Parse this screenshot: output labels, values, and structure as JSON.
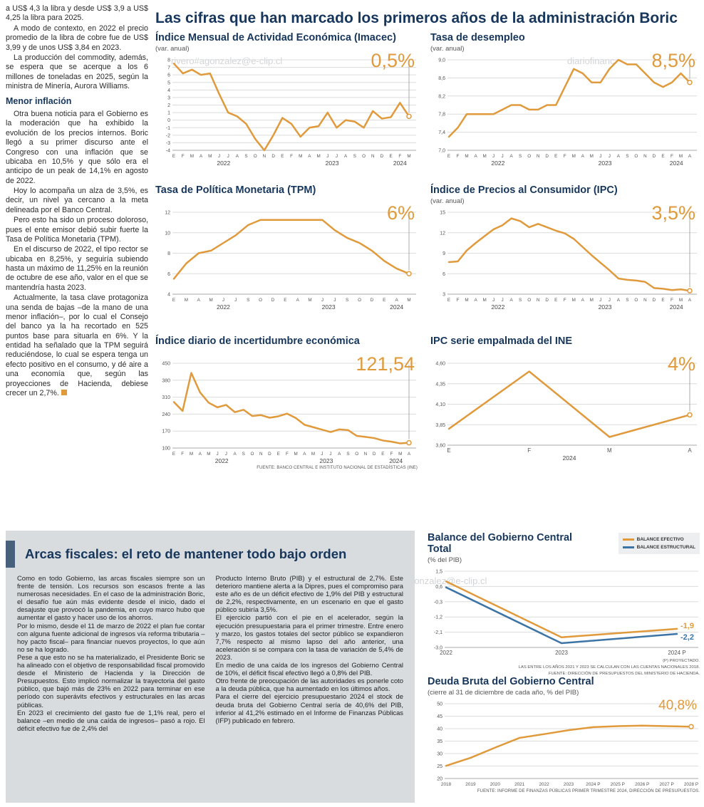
{
  "colors": {
    "accent_orange": "#E09A3C",
    "line_blue": "#3C74A6",
    "navy": "#16365C",
    "box_gray": "#D9DCDF"
  },
  "watermarks": {
    "top_left": "rivero#agonzalez@e-clip.cl",
    "top_right": "diariofinanc",
    "middle": "ero.#gagonzalez@e-clip.cl"
  },
  "left_column": {
    "paragraphs_top": [
      "a US$ 4,3 la libra y desde US$ 3,9 a US$ 4,25 la libra para 2025.",
      "A modo de contexto, en 2022 el precio promedio de la libra de cobre fue de US$ 3,99 y de unos US$ 3,84 en 2023.",
      "La producción del commodity, además, se espera que se acerque a los 6 millones de toneladas en 2025, según la ministra de Minería, Aurora Williams."
    ],
    "heading": "Menor inflación",
    "paragraphs_bottom": [
      "Otra buena noticia para el Gobierno es la moderación que ha exhibido la evolución de los precios internos. Boric llegó a su primer discurso ante el Congreso con una inflación que se ubicaba en 10,5% y que sólo era el anticipo de un peak de 14,1% en agosto de 2022.",
      "Hoy lo acompaña un alza de 3,5%, es decir, un nivel ya cercano a la meta delineada por el Banco Central.",
      "Pero esto ha sido un proceso doloroso, pues el ente emisor debió subir fuerte la Tasa de Política Monetaria (TPM).",
      "En el discurso de 2022, el tipo rector se ubicaba en 8,25%, y seguiría subiendo hasta un máximo de 11,25% en la reunión de octubre de ese año, valor en el que se mantendría hasta 2023.",
      "Actualmente, la tasa clave protagoniza una senda de bajas –de la mano de una menor inflación–, por lo cual el Consejo del banco ya la ha recortado en 525 puntos base para situarla en 6%. Y la entidad ha señalado que la TPM seguirá reduciéndose, lo cual se espera tenga un efecto positivo en el consumo, y dé aire a una economía que, según las proyecciones de Hacienda, debiese crecer un 2,7%."
    ]
  },
  "main_title": "Las cifras que han marcado los primeros años de la administración Boric",
  "chart_data": [
    {
      "type": "line",
      "title": "Índice Mensual de Actividad Económica (Imacec)",
      "subtitle": "(var. anual)",
      "big_value": "0,5%",
      "ylim": [
        -4,
        8
      ],
      "yticks": [
        8,
        7,
        6,
        5,
        4,
        3,
        2,
        1,
        0,
        -1,
        -2,
        -3,
        -4
      ],
      "ytick_labels": [
        "8",
        "7",
        "6",
        "5",
        "4",
        "3",
        "2",
        "1",
        "0",
        "-1",
        "-2",
        "-3",
        "-4"
      ],
      "x_labels": [
        "E",
        "F",
        "M",
        "A",
        "M",
        "J",
        "J",
        "A",
        "S",
        "O",
        "N",
        "D",
        "E",
        "F",
        "M",
        "A",
        "M",
        "J",
        "J",
        "A",
        "S",
        "O",
        "N",
        "D",
        "E",
        "F",
        "M"
      ],
      "years": [
        {
          "label": "2022",
          "i": 5.5
        },
        {
          "label": "2023",
          "i": 17.5
        },
        {
          "label": "2024",
          "i": 25
        }
      ],
      "series": [
        {
          "color": "#E09A3C",
          "values": [
            7.5,
            6.2,
            6.7,
            6.0,
            6.2,
            3.5,
            1.0,
            0.5,
            -0.5,
            -2.5,
            -4.0,
            -2.0,
            0.3,
            -0.5,
            -2.2,
            -1.0,
            -0.8,
            1.0,
            -1.0,
            0.0,
            -0.2,
            -1.0,
            1.2,
            0.2,
            0.4,
            2.3,
            0.5
          ]
        }
      ],
      "end_marker": true,
      "drop_line": true
    },
    {
      "type": "line",
      "title": "Tasa de desempleo",
      "subtitle": "(var. anual)",
      "big_value": "8,5%",
      "ylim": [
        7.0,
        9.0
      ],
      "yticks": [
        9.0,
        8.6,
        8.2,
        7.8,
        7.4,
        7.0
      ],
      "ytick_labels": [
        "9,0",
        "8,6",
        "8,2",
        "7,8",
        "7,4",
        "7,0"
      ],
      "x_labels": [
        "E",
        "F",
        "M",
        "A",
        "M",
        "J",
        "J",
        "A",
        "S",
        "O",
        "N",
        "D",
        "E",
        "F",
        "M",
        "A",
        "M",
        "J",
        "J",
        "A",
        "S",
        "O",
        "N",
        "D",
        "E",
        "F",
        "M",
        "A"
      ],
      "years": [
        {
          "label": "2022",
          "i": 5.5
        },
        {
          "label": "2023",
          "i": 17.5
        },
        {
          "label": "2024",
          "i": 25.5
        }
      ],
      "series": [
        {
          "color": "#E09A3C",
          "values": [
            7.3,
            7.5,
            7.8,
            7.8,
            7.8,
            7.8,
            7.9,
            8.0,
            8.0,
            7.9,
            7.9,
            8.0,
            8.0,
            8.4,
            8.8,
            8.7,
            8.5,
            8.5,
            8.8,
            9.0,
            8.9,
            8.9,
            8.7,
            8.5,
            8.4,
            8.5,
            8.7,
            8.5
          ]
        }
      ],
      "end_marker": true,
      "drop_line": true
    },
    {
      "type": "line",
      "title": "Tasa de Política Monetaria (TPM)",
      "subtitle": "",
      "big_value": "6%",
      "ylim": [
        4,
        12
      ],
      "yticks": [
        12,
        10,
        8,
        6,
        4
      ],
      "ytick_labels": [
        "12",
        "10",
        "8",
        "6",
        "4"
      ],
      "x_labels": [
        "E",
        "M",
        "A",
        "M",
        "J",
        "J",
        "S",
        "O",
        "D",
        "E",
        "A",
        "M",
        "J",
        "J",
        "S",
        "O",
        "D",
        "E",
        "A",
        "M"
      ],
      "years": [
        {
          "label": "2022",
          "i": 4
        },
        {
          "label": "2023",
          "i": 12.5
        },
        {
          "label": "2024",
          "i": 18
        }
      ],
      "series": [
        {
          "color": "#E09A3C",
          "values": [
            5.5,
            7.0,
            8.0,
            8.25,
            9.0,
            9.75,
            10.75,
            11.25,
            11.25,
            11.25,
            11.25,
            11.25,
            11.25,
            10.25,
            9.5,
            9.0,
            8.25,
            7.25,
            6.5,
            6.0
          ]
        }
      ],
      "end_marker": true,
      "drop_line": true
    },
    {
      "type": "line",
      "title": "Índice de Precios al Consumidor (IPC)",
      "subtitle": "(var. anual)",
      "big_value": "3,5%",
      "ylim": [
        3,
        15
      ],
      "yticks": [
        15,
        12,
        9,
        6,
        3
      ],
      "ytick_labels": [
        "15",
        "12",
        "9",
        "6",
        "3"
      ],
      "x_labels": [
        "E",
        "F",
        "M",
        "A",
        "M",
        "J",
        "J",
        "A",
        "S",
        "O",
        "N",
        "D",
        "E",
        "F",
        "M",
        "A",
        "M",
        "J",
        "J",
        "A",
        "S",
        "O",
        "N",
        "D",
        "E",
        "F",
        "M",
        "A"
      ],
      "years": [
        {
          "label": "2022",
          "i": 5.5
        },
        {
          "label": "2023",
          "i": 17.5
        },
        {
          "label": "2024",
          "i": 25.5
        }
      ],
      "series": [
        {
          "color": "#E09A3C",
          "values": [
            7.7,
            7.8,
            9.4,
            10.5,
            11.5,
            12.5,
            13.1,
            14.1,
            13.7,
            12.8,
            13.3,
            12.8,
            12.3,
            11.9,
            11.1,
            9.9,
            8.7,
            7.6,
            6.5,
            5.3,
            5.1,
            5.0,
            4.8,
            3.9,
            3.8,
            3.6,
            3.7,
            3.5
          ]
        }
      ],
      "end_marker": true,
      "drop_line": true
    },
    {
      "type": "line",
      "title": "Índice diario de incertidumbre económica",
      "subtitle": "",
      "big_value": "121,54",
      "ylim": [
        100,
        450
      ],
      "yticks": [
        450,
        380,
        310,
        240,
        170,
        100
      ],
      "ytick_labels": [
        "450",
        "380",
        "310",
        "240",
        "170",
        "100"
      ],
      "x_labels": [
        "E",
        "F",
        "M",
        "A",
        "M",
        "J",
        "J",
        "A",
        "S",
        "O",
        "N",
        "D",
        "E",
        "F",
        "M",
        "A",
        "M",
        "J",
        "J",
        "A",
        "S",
        "O",
        "N",
        "D",
        "E",
        "F",
        "M",
        "A"
      ],
      "years": [
        {
          "label": "2022",
          "i": 5.5
        },
        {
          "label": "2023",
          "i": 17.5
        },
        {
          "label": "2024",
          "i": 25.5
        }
      ],
      "series": [
        {
          "color": "#E09A3C",
          "values": [
            290,
            253,
            410,
            330,
            287,
            268,
            278,
            248,
            258,
            232,
            236,
            225,
            231,
            242,
            224,
            196,
            186,
            176,
            166,
            177,
            174,
            150,
            146,
            141,
            131,
            126,
            119,
            121.54
          ]
        }
      ],
      "end_marker": true,
      "drop_line": true,
      "source": "FUENTE: BANCO CENTRAL E INSTITUTO NACIONAL DE ESTADÍSTICAS (INE)"
    },
    {
      "type": "line",
      "title": "IPC serie empalmada del INE",
      "subtitle": "",
      "big_value": "4%",
      "ylim": [
        3.6,
        4.6
      ],
      "yticks": [
        4.6,
        4.35,
        4.1,
        3.85,
        3.6
      ],
      "ytick_labels": [
        "4,60",
        "4,35",
        "4,10",
        "3,85",
        "3,60"
      ],
      "x_labels": [
        "E",
        "F",
        "M",
        "A"
      ],
      "xlabel_size": 8,
      "years": [
        {
          "label": "2024",
          "i": 1.5
        }
      ],
      "series": [
        {
          "color": "#E09A3C",
          "values": [
            3.8,
            4.5,
            3.7,
            3.97
          ]
        }
      ],
      "end_marker": true,
      "drop_line": true
    },
    {
      "type": "line",
      "title": "Balance del Gobierno Central Total",
      "subtitle": "(% del PIB)",
      "big_value": "",
      "ylim": [
        -3.0,
        1.5
      ],
      "yticks": [
        1.5,
        0.6,
        -0.3,
        -1.2,
        -2.1,
        -3.0
      ],
      "ytick_labels": [
        "1,5",
        "0,6",
        "-0,3",
        "-1,2",
        "-2,1",
        "-3,0"
      ],
      "x_labels": [
        "2022",
        "2023",
        "2024 P"
      ],
      "xlabel_size": 8,
      "margin_right": 32,
      "series": [
        {
          "name": "BALANCE EFECTIVO",
          "color": "#E09A3C",
          "values": [
            0.9,
            -2.4,
            -1.9
          ],
          "end_label": "-1,9",
          "label_dy": -1
        },
        {
          "name": "BALANCE ESTRUCTURAL",
          "color": "#3C74A6",
          "values": [
            0.55,
            -2.75,
            -2.2
          ],
          "end_label": "-2,2",
          "label_dy": 8
        }
      ],
      "end_marker": false,
      "drop_line": false,
      "notes": [
        "(P) PROYECTADO.",
        "LAS ENTRE LOS AÑOS 2021 Y 2023 SE CALCULAN CON LAS CUENTAS NACIONALES 2018.",
        "FUENTE: DIRECCIÓN DE PRESUPUESTOS DEL MINISTERIO DE HACIENDA."
      ]
    },
    {
      "type": "line",
      "title": "Deuda Bruta del Gobierno Central",
      "subtitle": "(cierre al 31 de diciembre de cada año, % del PIB)",
      "big_value": "40,8%",
      "ylim": [
        20,
        50
      ],
      "yticks": [
        50,
        45,
        40,
        35,
        30,
        25,
        20
      ],
      "ytick_labels": [
        "50",
        "45",
        "40",
        "35",
        "30",
        "25",
        "20"
      ],
      "x_labels": [
        "2018",
        "2019",
        "2020",
        "2021",
        "2022",
        "2023",
        "2024 P",
        "2025 P",
        "2026 P",
        "2027 P",
        "2028 P"
      ],
      "xlabel_size": 6.4,
      "series": [
        {
          "color": "#E09A3C",
          "values": [
            25.1,
            28.3,
            32.4,
            36.3,
            37.8,
            39.4,
            40.6,
            41.0,
            41.2,
            41.0,
            40.8
          ]
        }
      ],
      "end_marker": true,
      "drop_line": false,
      "source": "FUENTE: INFORME DE FINANZAS PÚBLICAS PRIMER TRIMESTRE 2024, DIRECCIÓN DE PRESUPUESTOS."
    }
  ],
  "arcas": {
    "title": "Arcas fiscales: el reto de mantener todo bajo orden",
    "col1": [
      "Como en todo Gobierno, las arcas fiscales siempre son un frente de tensión. Los recursos son escasos frente a las numerosas necesidades. En el caso de la administración Boric, el desafío fue aún más evidente desde el inicio, dado el desajuste que provocó la pandemia, en cuyo marco hubo que aumentar el gasto y hacer uso de los ahorros.",
      "Por lo mismo, desde el 11 de marzo de 2022 el plan fue contar con alguna fuente adicional de ingresos vía reforma tributaria –hoy pacto fiscal– para financiar nuevos proyectos, lo que aún no se ha logrado.",
      "Pese a que esto no se ha materializado, el Presidente Boric se ha alineado con el objetivo de responsabilidad fiscal promovido desde el Ministerio de Hacienda y la Dirección de Presupuestos. Esto implicó normalizar la trayectoria del gasto público, que bajó más de 23% en 2022 para terminar en ese período con superávits efectivos y estructurales en las arcas públicas.",
      "En 2023 el crecimiento del gasto fue de 1,1% real, pero el balance –en medio de una caída de ingresos– pasó a rojo. El déficit efectivo fue de 2,4% del"
    ],
    "col2": [
      "Producto Interno Bruto (PIB) y el estructural de 2,7%. Este deterioro mantiene alerta a la Dipres, pues el compromiso para este año es de un déficit efectivo de 1,9% del PIB y estructural de 2,2%, respectivamente, en un escenario en que el gasto público subiría 3,5%.",
      "El ejercicio partió con el pie en el acelerador, según la ejecución presupuestaria para el primer trimestre. Entre enero y marzo, los gastos totales del sector público se expandieron 7,7% respecto al mismo lapso del año anterior, una aceleración si se compara con la tasa de variación de 5,4% de 2023.",
      "En medio de una caída de los ingresos del Gobierno Central de 10%, el déficit fiscal efectivo llegó a 0,8% del PIB.",
      "Otro frente de preocupación de las autoridades es ponerle coto a la deuda pública, que ha aumentado en los últimos años.",
      "Para el cierre del ejercicio presupuestario 2024 el stock de deuda bruta del Gobierno Central sería de 40,6% del PIB, inferior al 41,2% estimado en el Informe de Finanzas Públicas (IFP) publicado en febrero."
    ]
  }
}
